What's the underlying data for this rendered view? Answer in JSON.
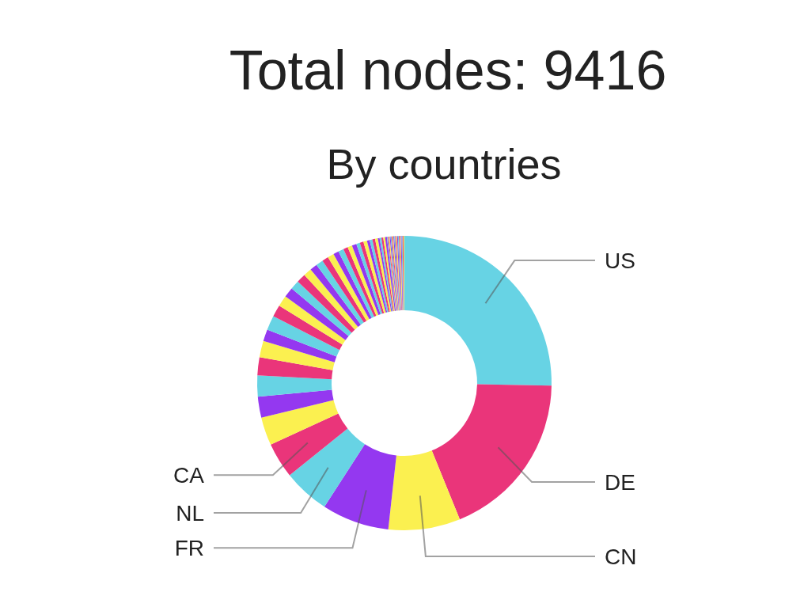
{
  "chart_data": {
    "type": "donut",
    "title": "Total nodes: 9416",
    "subtitle": "By countries",
    "categories": [
      "US",
      "DE",
      "CN",
      "FR",
      "NL",
      "CA",
      null,
      null,
      null,
      null,
      null,
      null,
      null,
      null,
      null,
      null,
      null,
      null,
      null,
      null,
      null,
      null,
      null,
      null,
      null,
      null,
      null,
      null,
      null,
      null,
      null,
      null,
      null,
      null,
      null,
      null,
      null,
      null,
      null,
      null,
      null,
      null,
      null,
      null,
      null,
      null,
      null,
      null,
      null,
      null,
      null,
      null,
      null,
      null,
      null,
      null,
      null,
      null,
      null
    ],
    "values": [
      25.3,
      18.6,
      7.9,
      7.4,
      5.1,
      3.9,
      3.1,
      2.3,
      2.3,
      2.0,
      1.8,
      1.3,
      1.6,
      1.3,
      1.2,
      1.1,
      1.0,
      1.0,
      0.9,
      0.8,
      0.8,
      0.7,
      0.7,
      0.6,
      0.6,
      0.5,
      0.5,
      0.5,
      0.4,
      0.4,
      0.4,
      0.3,
      0.3,
      0.3,
      0.3,
      0.2,
      0.2,
      0.2,
      0.2,
      0.2,
      0.1,
      0.1,
      0.1,
      0.1,
      0.1,
      0.1,
      0.1,
      0.1,
      0.1,
      0.1,
      0.1,
      0.1,
      0.1,
      0.1,
      0.1,
      0.1,
      0.1,
      0.1,
      0.1
    ],
    "colors": [
      "#67d3e4",
      "#ea357a",
      "#fbf050",
      "#9438f0",
      "#67d3e4",
      "#ea357a",
      "#fbf050",
      "#9438f0",
      "#67d3e4",
      "#ea357a",
      "#fbf050",
      "#9438f0",
      "#67d3e4",
      "#ea357a",
      "#fbf050",
      "#9438f0",
      "#67d3e4",
      "#ea357a",
      "#fbf050",
      "#9438f0",
      "#67d3e4",
      "#ea357a",
      "#fbf050",
      "#9438f0",
      "#67d3e4",
      "#ea357a",
      "#fbf050",
      "#9438f0",
      "#67d3e4",
      "#ea357a",
      "#fbf050",
      "#9438f0",
      "#67d3e4",
      "#ea357a",
      "#fbf050",
      "#9438f0",
      "#67d3e4",
      "#ea357a",
      "#fbf050",
      "#9438f0",
      "#67d3e4",
      "#ea357a",
      "#fbf050",
      "#9438f0",
      "#67d3e4",
      "#ea357a",
      "#fbf050",
      "#9438f0",
      "#67d3e4",
      "#ea357a",
      "#fbf050",
      "#9438f0",
      "#67d3e4",
      "#ea357a",
      "#fbf050",
      "#9438f0",
      "#67d3e4",
      "#ea357a",
      "#fbf050"
    ]
  }
}
